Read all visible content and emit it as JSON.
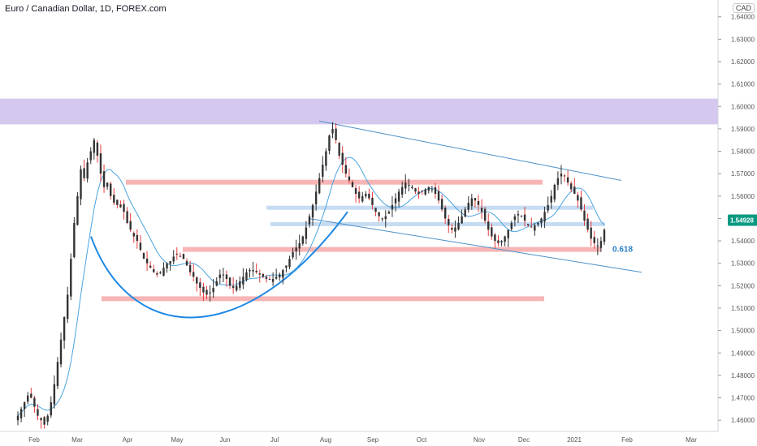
{
  "header": {
    "title": "Euro / Canadian Dollar, 1D, FOREX.com",
    "currency_badge": "CAD"
  },
  "colors": {
    "up": "#26a69a",
    "down": "#ef5350",
    "candle": "#333333",
    "wick_up": "#2f2f2f",
    "wick_down": "#e33b3b",
    "ma": "#4aa3df",
    "zone": "#d5c8ee",
    "support": "#f7b5b5",
    "minor": "#c6dcf2",
    "channel": "#4a90c8",
    "fib": "#2a7ec8",
    "last_tag": "#089981"
  },
  "chart_data": {
    "type": "candlestick",
    "title": "Euro / Canadian Dollar, 1D, FOREX.com",
    "x_axis": {
      "ticks": [
        "Feb",
        "Mar",
        "Apr",
        "May",
        "Jun",
        "Jul",
        "Aug",
        "Sep",
        "Oct",
        "Nov",
        "Dec",
        "2021",
        "Feb",
        "Mar"
      ]
    },
    "y_axis": {
      "range": [
        1.455,
        1.6475
      ],
      "ticks": [
        "1.64000",
        "1.63000",
        "1.62000",
        "1.61000",
        "1.60000",
        "1.59000",
        "1.58000",
        "1.57000",
        "1.56000",
        "1.55000",
        "1.54000",
        "1.53000",
        "1.52000",
        "1.51000",
        "1.50000",
        "1.49000",
        "1.48000",
        "1.47000",
        "1.46000"
      ]
    },
    "last_price": "1.54928",
    "annotations": {
      "fib_label": "0.618",
      "resistance_zone": [
        1.592,
        1.6035
      ],
      "support_lines": [
        1.5662,
        1.5362,
        1.5142
      ],
      "minor_lines": [
        1.5548,
        1.5475
      ]
    },
    "close_series": [
      1.462,
      1.465,
      1.468,
      1.471,
      1.47,
      1.466,
      1.462,
      1.46,
      1.458,
      1.462,
      1.468,
      1.476,
      1.486,
      1.496,
      1.506,
      1.516,
      1.532,
      1.548,
      1.56,
      1.572,
      1.568,
      1.575,
      1.58,
      1.585,
      1.578,
      1.57,
      1.564,
      1.566,
      1.56,
      1.557,
      1.556,
      1.555,
      1.553,
      1.548,
      1.545,
      1.542,
      1.54,
      1.536,
      1.532,
      1.53,
      1.528,
      1.526,
      1.525,
      1.526,
      1.528,
      1.53,
      1.531,
      1.533,
      1.534,
      1.533,
      1.532,
      1.529,
      1.526,
      1.524,
      1.521,
      1.519,
      1.517,
      1.516,
      1.517,
      1.519,
      1.522,
      1.525,
      1.525,
      1.523,
      1.52,
      1.519,
      1.52,
      1.522,
      1.524,
      1.526,
      1.527,
      1.527,
      1.526,
      1.525,
      1.524,
      1.523,
      1.523,
      1.523,
      1.524,
      1.525,
      1.527,
      1.529,
      1.532,
      1.535,
      1.537,
      1.539,
      1.542,
      1.546,
      1.551,
      1.556,
      1.562,
      1.568,
      1.574,
      1.58,
      1.587,
      1.59,
      1.585,
      1.578,
      1.574,
      1.57,
      1.567,
      1.564,
      1.561,
      1.559,
      1.56,
      1.561,
      1.559,
      1.556,
      1.553,
      1.551,
      1.55,
      1.551,
      1.553,
      1.556,
      1.559,
      1.562,
      1.564,
      1.566,
      1.565,
      1.564,
      1.562,
      1.561,
      1.562,
      1.563,
      1.564,
      1.563,
      1.561,
      1.558,
      1.554,
      1.55,
      1.547,
      1.545,
      1.546,
      1.548,
      1.551,
      1.554,
      1.557,
      1.559,
      1.558,
      1.556,
      1.553,
      1.549,
      1.545,
      1.542,
      1.54,
      1.539,
      1.54,
      1.542,
      1.545,
      1.548,
      1.551,
      1.552,
      1.551,
      1.549,
      1.547,
      1.546,
      1.547,
      1.548,
      1.55,
      1.553,
      1.556,
      1.56,
      1.565,
      1.568,
      1.57,
      1.569,
      1.566,
      1.563,
      1.561,
      1.558,
      1.554,
      1.549,
      1.545,
      1.541,
      1.539,
      1.538,
      1.54,
      1.545
    ]
  }
}
